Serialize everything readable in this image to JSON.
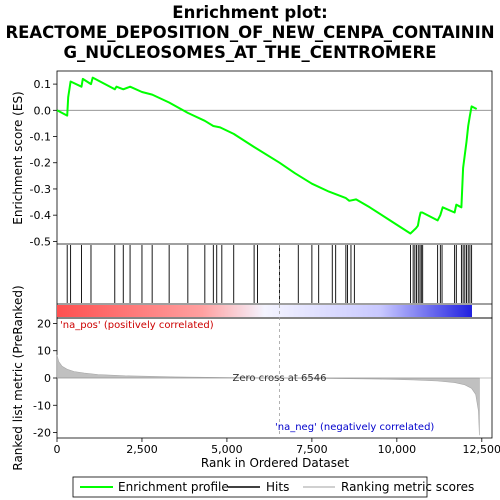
{
  "chart_data": {
    "type": "line",
    "title_lines": [
      "Enrichment plot:",
      "REACTOME_DEPOSITION_OF_NEW_CENPA_CONTAININ",
      "G_NUCLEOSOMES_AT_THE_CENTROMERE"
    ],
    "top_panel": {
      "ylabel": "Enrichment score (ES)",
      "ylim": [
        -0.51,
        0.15
      ],
      "yticks": [
        0.1,
        0.0,
        -0.1,
        -0.2,
        -0.3,
        -0.4,
        -0.5
      ],
      "ytick_labels": [
        "0.1",
        "0.0",
        "-0.1",
        "-0.2",
        "-0.3",
        "-0.4",
        "-0.5"
      ],
      "series": [
        {
          "name": "Enrichment profile",
          "color": "#00ff00",
          "x": [
            0,
            300,
            330,
            400,
            720,
            760,
            1000,
            1050,
            1700,
            1750,
            1950,
            2150,
            2500,
            2800,
            3300,
            3850,
            4350,
            4600,
            4800,
            5200,
            5800,
            6546,
            7000,
            7500,
            8000,
            8500,
            8600,
            8800,
            9200,
            9800,
            10400,
            10480,
            10520,
            10560,
            10620,
            10660,
            10700,
            10750,
            11200,
            11280,
            11350,
            11700,
            11750,
            11900,
            11950,
            12000,
            12050,
            12100,
            12150,
            12200,
            12350
          ],
          "y": [
            0.0,
            -0.02,
            0.05,
            0.11,
            0.09,
            0.12,
            0.1,
            0.125,
            0.08,
            0.09,
            0.08,
            0.09,
            0.07,
            0.06,
            0.03,
            -0.01,
            -0.04,
            -0.06,
            -0.065,
            -0.09,
            -0.14,
            -0.2,
            -0.24,
            -0.28,
            -0.31,
            -0.335,
            -0.345,
            -0.34,
            -0.37,
            -0.42,
            -0.47,
            -0.46,
            -0.455,
            -0.45,
            -0.44,
            -0.41,
            -0.39,
            -0.39,
            -0.42,
            -0.4,
            -0.37,
            -0.39,
            -0.36,
            -0.37,
            -0.22,
            -0.17,
            -0.12,
            -0.06,
            -0.02,
            0.015,
            0.005
          ]
        }
      ],
      "zero_line": true
    },
    "hits": {
      "name": "Hits",
      "positions": [
        300,
        400,
        720,
        1000,
        1700,
        1950,
        2150,
        2500,
        2800,
        3300,
        3850,
        4350,
        4600,
        4700,
        4850,
        5200,
        5800,
        5900,
        6546,
        7100,
        7500,
        7700,
        8100,
        8200,
        8500,
        8550,
        8650,
        8750,
        10400,
        10480,
        10530,
        10580,
        10630,
        10680,
        10720,
        10760,
        11200,
        11280,
        11330,
        11700,
        11750,
        11900,
        11950,
        12000,
        12050,
        12100,
        12150,
        12200
      ]
    },
    "heatmap_bar": {
      "from_color": "#ff6060",
      "mid_color": "#ffffff",
      "to_color": "#3030ff"
    },
    "bottom_panel": {
      "ylabel": "Ranked list metric (PreRanked)",
      "xlabel": "Rank in Ordered Dataset",
      "ylim": [
        -22,
        22
      ],
      "yticks": [
        20,
        10,
        0,
        -10,
        -20
      ],
      "ytick_labels": [
        "20",
        "10",
        "0",
        "-10",
        "-20"
      ],
      "xlim": [
        0,
        12800
      ],
      "xticks": [
        0,
        2500,
        5000,
        7500,
        10000,
        12500
      ],
      "xtick_labels": [
        "0",
        "2,500",
        "5,000",
        "7,500",
        "10,000",
        "12,500"
      ],
      "metric_x": [
        0,
        50,
        150,
        300,
        500,
        800,
        1200,
        2000,
        3500,
        5000,
        6546,
        8000,
        9500,
        10500,
        11200,
        11700,
        12000,
        12200,
        12320,
        12400,
        12430
      ],
      "metric_y": [
        8.5,
        6.0,
        4.3,
        3.2,
        2.4,
        1.8,
        1.3,
        0.8,
        0.4,
        0.15,
        0.0,
        -0.2,
        -0.4,
        -0.7,
        -1.1,
        -1.7,
        -2.5,
        -3.8,
        -6.0,
        -12.0,
        -21.0
      ],
      "zero_cross_rank": 6546,
      "zero_cross_label": "Zero cross at 6546",
      "pos_label": "'na_pos' (positively correlated)",
      "neg_label": "'na_neg' (negatively correlated)",
      "pos_color": "#cc0000",
      "neg_color": "#0000cc"
    },
    "legend": [
      {
        "label": "Enrichment profile",
        "color": "#00ff00"
      },
      {
        "label": "Hits",
        "color": "#000000"
      },
      {
        "label": "Ranking metric scores",
        "color": "#c0c0c0"
      }
    ]
  }
}
